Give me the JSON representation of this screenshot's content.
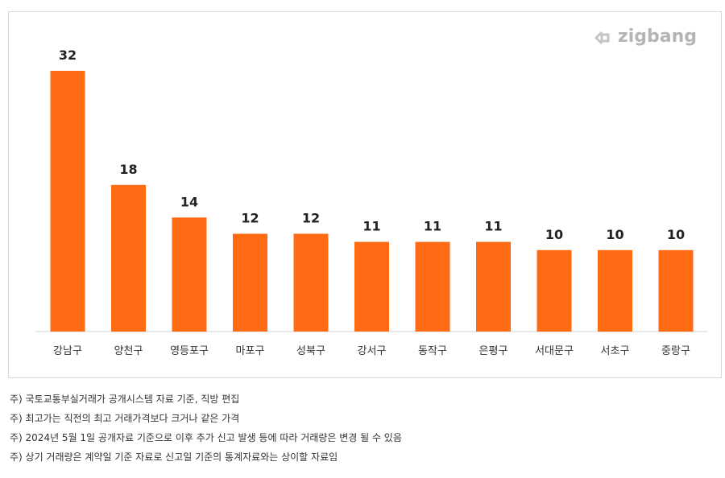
{
  "logo": {
    "text": "zigbang",
    "icon": "zigbang-logo-icon"
  },
  "chart_data": {
    "type": "bar",
    "categories": [
      "강남구",
      "양천구",
      "영등포구",
      "마포구",
      "성북구",
      "강서구",
      "동작구",
      "은평구",
      "서대문구",
      "서초구",
      "중랑구"
    ],
    "values": [
      32,
      18,
      14,
      12,
      12,
      11,
      11,
      11,
      10,
      10,
      10
    ],
    "bar_color": "#ff6a13",
    "ylim": [
      0,
      35
    ],
    "data_labels": true,
    "grid": false
  },
  "notes": [
    "주) 국토교통부실거래가 공개시스템 자료 기준, 직방 편집",
    "주) 최고가는 직전의 최고 거래가격보다 크거나 같은 가격",
    "주) 2024년 5월 1일 공개자료 기준으로 이후 추가 신고 발생 등에 따라 거래량은 변경 될 수 있음",
    "주) 상기 거래량은 계약일 기준 자료로 신고일 기준의  통계자료와는 상이할 자료임"
  ]
}
